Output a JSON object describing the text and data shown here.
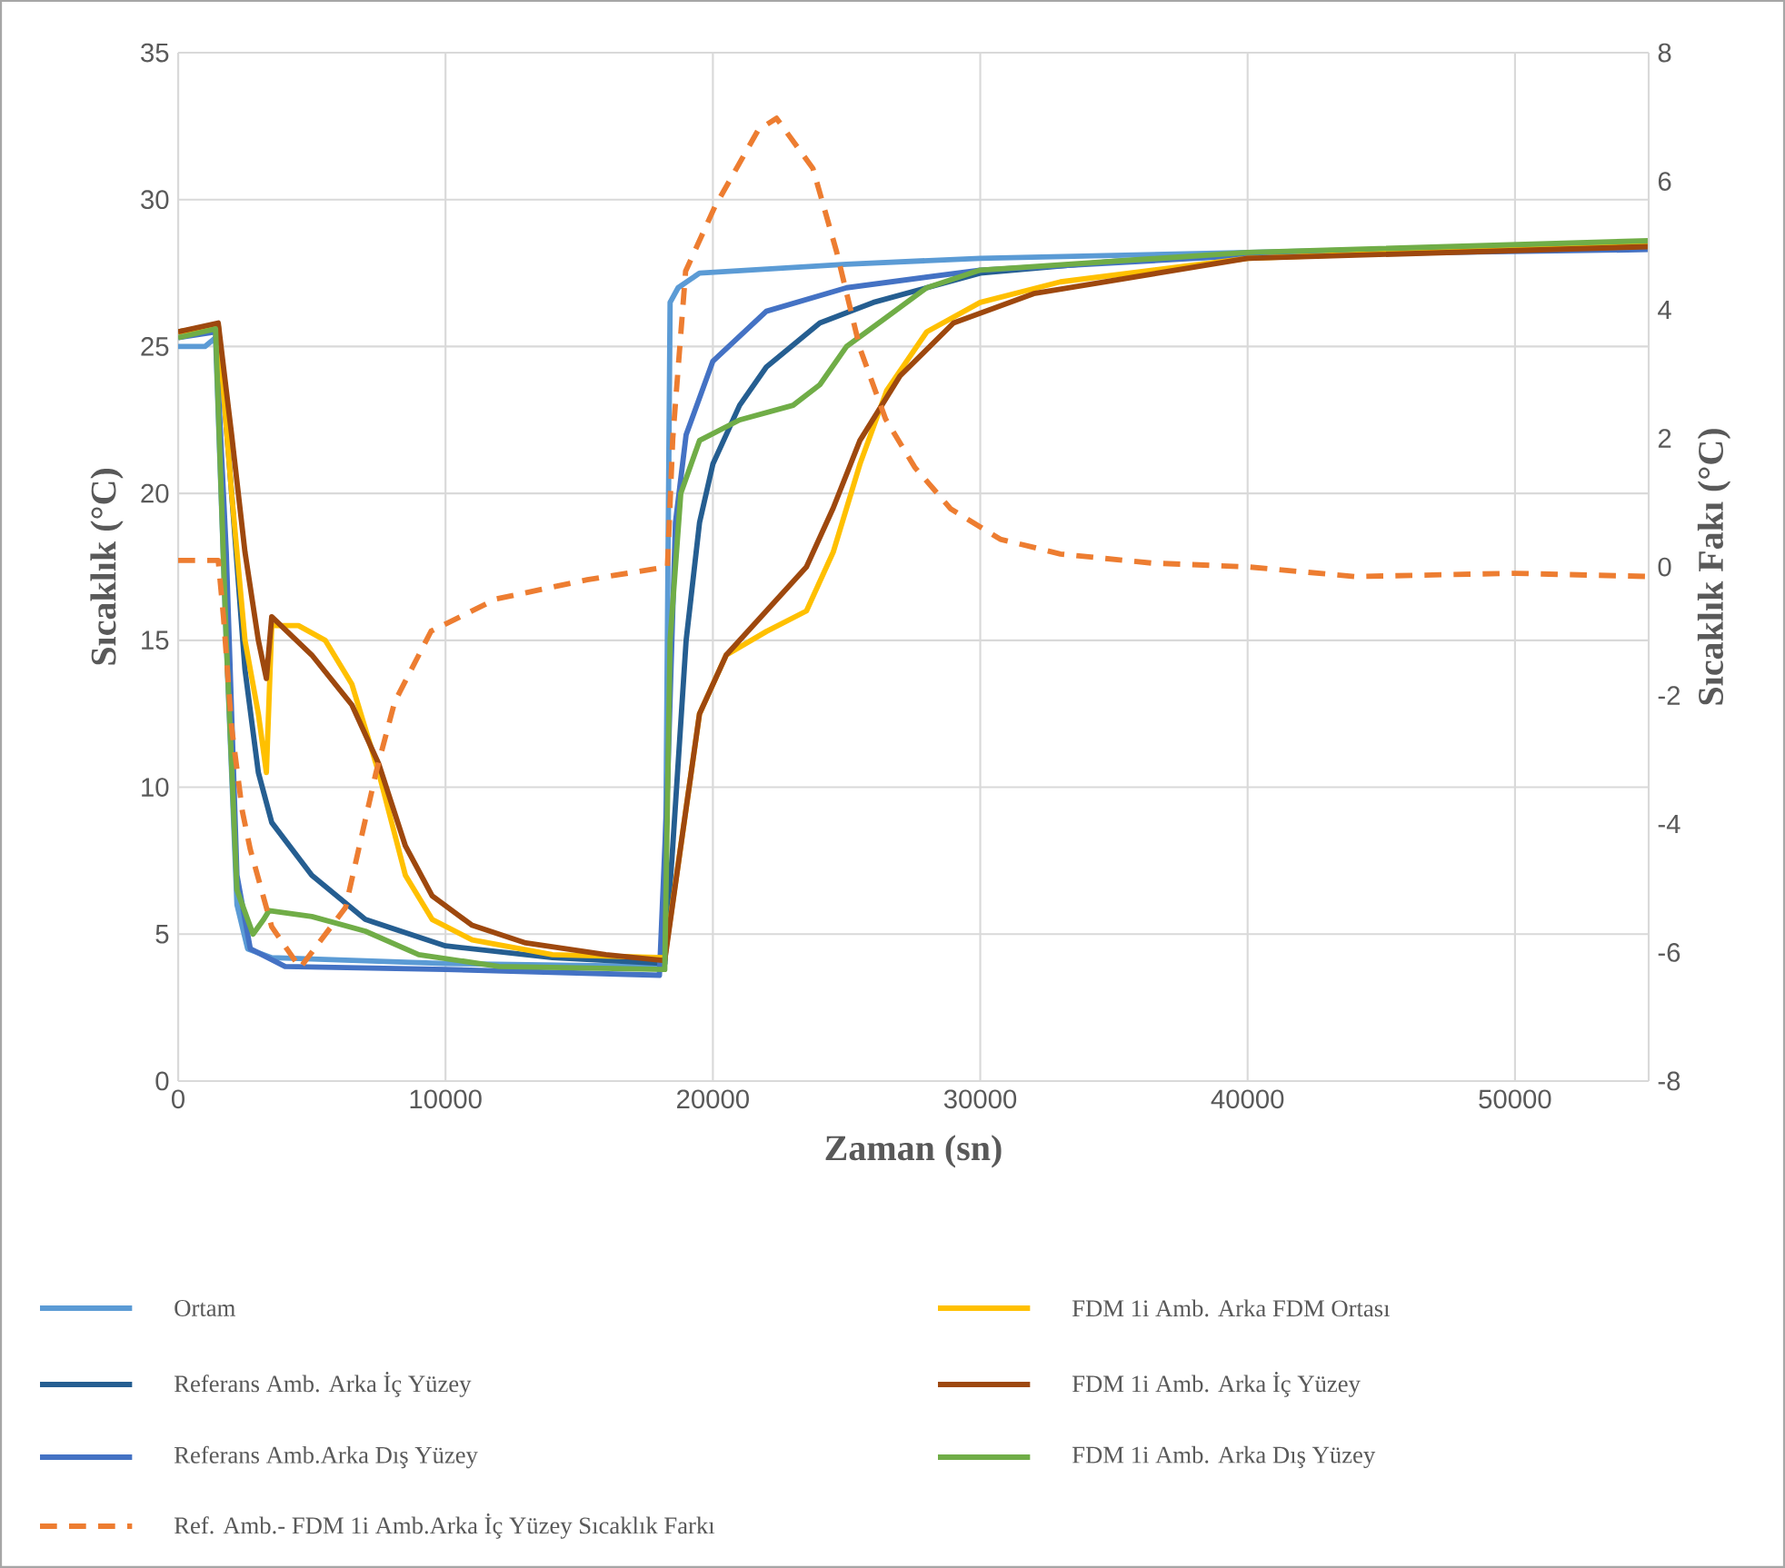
{
  "chart_data": {
    "type": "line",
    "xlabel": "Zaman (sn)",
    "ylabel": "Sıcaklık (°C)",
    "y2label": "Sıcaklık Fakı (°C)",
    "xlim": [
      0,
      55000
    ],
    "xticks": [
      0,
      10000,
      20000,
      30000,
      40000,
      50000
    ],
    "ylim": [
      0,
      35
    ],
    "yticks": [
      0,
      5,
      10,
      15,
      20,
      25,
      30,
      35
    ],
    "y2lim": [
      -8,
      8
    ],
    "y2ticks": [
      -8,
      -6,
      -4,
      -2,
      0,
      2,
      4,
      6,
      8
    ],
    "grid": true,
    "legend": "bottom",
    "marker": "none",
    "series": [
      {
        "name": "Ortam",
        "color": "#5b9bd5",
        "x": [
          0,
          1000,
          1400,
          1800,
          2200,
          2600,
          3500,
          10000,
          18000,
          18200,
          18400,
          18700,
          19500,
          25000,
          30000,
          40000,
          55000
        ],
        "values": [
          25,
          25,
          25.3,
          15,
          6,
          4.5,
          4.2,
          4.0,
          3.9,
          4,
          26.5,
          27.0,
          27.5,
          27.8,
          28.0,
          28.2,
          28.5
        ]
      },
      {
        "name": "Referans Amb. Arka İç Yüzey",
        "color": "#255e91",
        "x": [
          0,
          1500,
          2000,
          2500,
          3000,
          3500,
          5000,
          7000,
          10000,
          14000,
          18200,
          18500,
          19000,
          19500,
          20000,
          21000,
          22000,
          24000,
          26000,
          30000,
          35000,
          40000,
          55000
        ],
        "values": [
          25.5,
          25.7,
          20,
          14,
          10.5,
          8.8,
          7,
          5.5,
          4.6,
          4.2,
          4.0,
          8,
          15,
          19,
          21,
          23,
          24.3,
          25.8,
          26.5,
          27.5,
          27.9,
          28.1,
          28.4
        ]
      },
      {
        "name": "Referans Amb.Arka Dış Yüzey",
        "color": "#4472c4",
        "x": [
          0,
          1400,
          1800,
          2200,
          2700,
          4000,
          10000,
          18000,
          18300,
          18600,
          19000,
          20000,
          22000,
          25000,
          30000,
          40000,
          55000
        ],
        "values": [
          25.3,
          25.5,
          18,
          7,
          4.5,
          3.9,
          3.8,
          3.6,
          10,
          19,
          22,
          24.5,
          26.2,
          27,
          27.6,
          28.1,
          28.3
        ]
      },
      {
        "name": "Ref. Amb.- FDM 1i Amb.Arka İç Yüzey Sıcaklık Farkı",
        "color": "#ed7d31",
        "axis": "y2",
        "line_style": "dashed",
        "x": [
          0,
          1500,
          1700,
          2000,
          2400,
          2700,
          3500,
          4560,
          6260,
          7400,
          8100,
          9460,
          11900,
          15300,
          18300,
          18500,
          18980,
          20070,
          21700,
          22380,
          23740,
          24630,
          25500,
          26460,
          27550,
          28900,
          30750,
          33000,
          36400,
          40000,
          44000,
          50000,
          55000
        ],
        "values": [
          0.1,
          0.1,
          -0.8,
          -2.5,
          -3.8,
          -4.4,
          -5.6,
          -6.24,
          -5.3,
          -3.2,
          -2.1,
          -1.0,
          -0.5,
          -0.2,
          0,
          2,
          4.6,
          5.6,
          6.8,
          6.98,
          6.2,
          4.9,
          3.4,
          2.3,
          1.55,
          0.9,
          0.43,
          0.2,
          0.06,
          0.0,
          -0.15,
          -0.1,
          -0.15
        ]
      },
      {
        "name": "FDM 1i Amb. Arka FDM Ortası",
        "color": "#ffc000",
        "x": [
          0,
          1500,
          2000,
          2500,
          3000,
          3300,
          3500,
          4500,
          5500,
          6500,
          7500,
          8500,
          9500,
          11000,
          14000,
          18200,
          18800,
          19500,
          20500,
          22000,
          23500,
          24500,
          25500,
          26500,
          28000,
          30000,
          33000,
          40000,
          55000
        ],
        "values": [
          25.5,
          25.7,
          20,
          15,
          12.5,
          10.5,
          15.5,
          15.5,
          15,
          13.5,
          10.5,
          7,
          5.5,
          4.8,
          4.3,
          4.2,
          8,
          12.5,
          14.5,
          15.3,
          16,
          18,
          21,
          23.5,
          25.5,
          26.5,
          27.2,
          28,
          28.5
        ]
      },
      {
        "name": "FDM 1i Amb. Arka İç Yüzey",
        "color": "#9e480e",
        "x": [
          0,
          1500,
          2000,
          2500,
          3000,
          3300,
          3500,
          5000,
          6500,
          7500,
          8500,
          9500,
          11000,
          13000,
          16000,
          18200,
          18800,
          19500,
          20500,
          22000,
          23500,
          24500,
          25500,
          27000,
          29000,
          32000,
          40000,
          55000
        ],
        "values": [
          25.5,
          25.8,
          22,
          18,
          15,
          13.7,
          15.8,
          14.5,
          12.8,
          10.8,
          8.0,
          6.3,
          5.3,
          4.7,
          4.3,
          4.1,
          8,
          12.5,
          14.5,
          16,
          17.5,
          19.5,
          21.8,
          24,
          25.8,
          26.8,
          28,
          28.4
        ]
      },
      {
        "name": "FDM 1i Amb. Arka Dış Yüzey",
        "color": "#70ad47",
        "x": [
          0,
          1400,
          1800,
          2200,
          2800,
          3200,
          3400,
          5000,
          7000,
          9000,
          12000,
          18200,
          18400,
          18800,
          19500,
          21000,
          23000,
          24000,
          25000,
          26500,
          28000,
          30000,
          40000,
          55000
        ],
        "values": [
          25.3,
          25.6,
          15,
          6.5,
          5.0,
          5.5,
          5.8,
          5.6,
          5.1,
          4.3,
          3.9,
          3.8,
          15,
          20,
          21.8,
          22.5,
          23,
          23.7,
          25,
          26,
          27,
          27.6,
          28.2,
          28.6
        ]
      }
    ]
  }
}
